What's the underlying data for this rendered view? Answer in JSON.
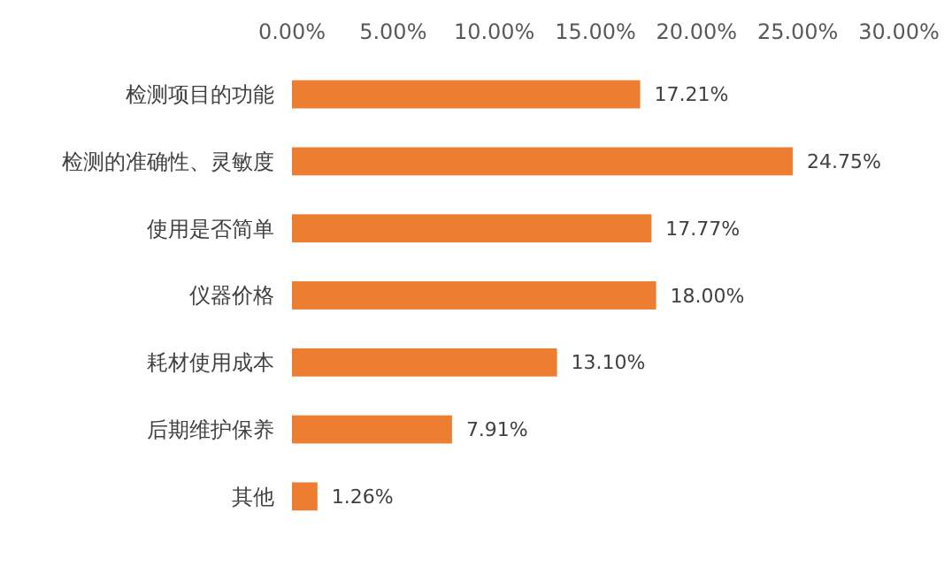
{
  "chart_data": {
    "type": "bar",
    "orientation": "horizontal",
    "categories": [
      "检测项目的功能",
      "检测的准确性、灵敏度",
      "使用是否简单",
      "仪器价格",
      "耗材使用成本",
      "后期维护保养",
      "其他"
    ],
    "values": [
      17.21,
      24.75,
      17.77,
      18.0,
      13.1,
      7.91,
      1.26
    ],
    "value_labels": [
      "17.21%",
      "24.75%",
      "17.77%",
      "18.00%",
      "13.10%",
      "7.91%",
      "1.26%"
    ],
    "color": "#ed7d31",
    "xlim": [
      0,
      30
    ],
    "xticks": [
      {
        "value": 0,
        "label": "0.00%"
      },
      {
        "value": 5,
        "label": "5.00%"
      },
      {
        "value": 10,
        "label": "10.00%"
      },
      {
        "value": 15,
        "label": "15.00%"
      },
      {
        "value": 20,
        "label": "20.00%"
      },
      {
        "value": 25,
        "label": "25.00%"
      },
      {
        "value": 30,
        "label": "30.00%"
      }
    ]
  }
}
